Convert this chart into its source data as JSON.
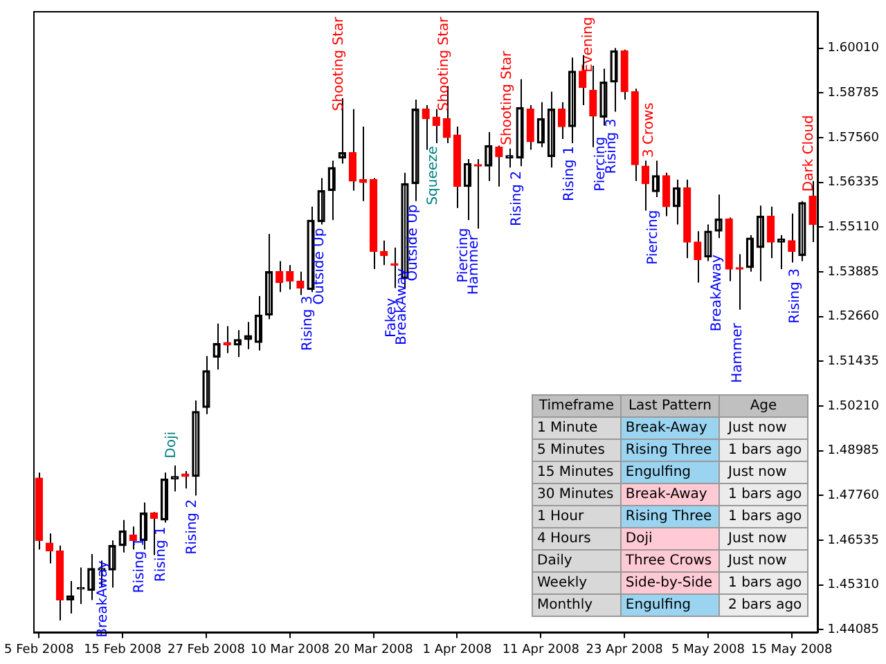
{
  "chart_data": [
    {
      "type": "candlestick",
      "categories": [
        "5 Feb 2008",
        null,
        null,
        null,
        null,
        null,
        null,
        null,
        "15 Feb 2008",
        null,
        null,
        null,
        null,
        null,
        null,
        null,
        "27 Feb 2008",
        null,
        null,
        null,
        null,
        null,
        null,
        null,
        "10 Mar 2008",
        null,
        null,
        null,
        null,
        null,
        null,
        null,
        "20 Mar 2008",
        null,
        null,
        null,
        null,
        null,
        null,
        null,
        "1 Apr 2008",
        null,
        null,
        null,
        null,
        null,
        null,
        null,
        "11 Apr 2008",
        null,
        null,
        null,
        null,
        null,
        null,
        null,
        "23 Apr 2008",
        null,
        null,
        null,
        null,
        null,
        null,
        null,
        "5 May 2008",
        null,
        null,
        null,
        null,
        null,
        null,
        null,
        "15 May 2008",
        null,
        null
      ],
      "ohlc": [
        [
          1.4824,
          1.4839,
          1.4628,
          1.4653
        ],
        [
          1.4646,
          1.4672,
          1.459,
          1.4624
        ],
        [
          1.4624,
          1.4639,
          1.4434,
          1.449
        ],
        [
          1.449,
          1.4542,
          1.4453,
          1.4501
        ],
        [
          1.452,
          1.4579,
          1.4479,
          1.4524
        ],
        [
          1.4516,
          1.4616,
          1.449,
          1.4576
        ],
        [
          1.4572,
          1.4598,
          1.4527,
          1.4576
        ],
        [
          1.4572,
          1.4653,
          1.4524,
          1.4639
        ],
        [
          1.4639,
          1.4709,
          1.462,
          1.4679
        ],
        [
          1.4668,
          1.4691,
          1.4628,
          1.4653
        ],
        [
          1.4653,
          1.4757,
          1.4628,
          1.4728
        ],
        [
          1.4728,
          1.4731,
          1.4613,
          1.4713
        ],
        [
          1.4709,
          1.4839,
          1.4702,
          1.4821
        ],
        [
          1.4821,
          1.4858,
          1.4787,
          1.4828
        ],
        [
          1.4835,
          1.4843,
          1.4795,
          1.4828
        ],
        [
          1.4828,
          1.5036,
          1.4776,
          1.5006
        ],
        [
          1.5017,
          1.5158,
          1.4999,
          1.5118
        ],
        [
          1.5155,
          1.5247,
          1.5121,
          1.5192
        ],
        [
          1.5195,
          1.524,
          1.5166,
          1.5188
        ],
        [
          1.5188,
          1.5229,
          1.5155,
          1.5203
        ],
        [
          1.5203,
          1.5251,
          1.5177,
          1.5214
        ],
        [
          1.5195,
          1.5322,
          1.5173,
          1.527
        ],
        [
          1.527,
          1.5492,
          1.5259,
          1.5389
        ],
        [
          1.5389,
          1.5418,
          1.5333,
          1.5359
        ],
        [
          1.5389,
          1.5407,
          1.534,
          1.5363
        ],
        [
          1.5363,
          1.5389,
          1.5325,
          1.5344
        ],
        [
          1.534,
          1.5567,
          1.5333,
          1.553
        ],
        [
          1.5526,
          1.5645,
          1.5518,
          1.5611
        ],
        [
          1.5611,
          1.5693,
          1.553,
          1.5674
        ],
        [
          1.57,
          1.5864,
          1.5685,
          1.5715
        ],
        [
          1.5715,
          1.5834,
          1.5611,
          1.5637
        ],
        [
          1.5641,
          1.5786,
          1.5582,
          1.5633
        ],
        [
          1.5641,
          1.5645,
          1.5396,
          1.5444
        ],
        [
          1.5444,
          1.5474,
          1.5407,
          1.5433
        ],
        [
          1.5411,
          1.5455,
          1.5344,
          1.5407
        ],
        [
          1.537,
          1.566,
          1.5344,
          1.563
        ],
        [
          1.563,
          1.586,
          1.5582,
          1.5834
        ],
        [
          1.5834,
          1.5845,
          1.5723,
          1.5808
        ],
        [
          1.5812,
          1.5834,
          1.5741,
          1.5789
        ],
        [
          1.5808,
          1.5897,
          1.5741,
          1.5756
        ],
        [
          1.5763,
          1.5786,
          1.5563,
          1.5622
        ],
        [
          1.5622,
          1.5697,
          1.553,
          1.5685
        ],
        [
          1.5682,
          1.5697,
          1.5507,
          1.5678
        ],
        [
          1.5678,
          1.5771,
          1.5637,
          1.5734
        ],
        [
          1.573,
          1.5734,
          1.5622,
          1.5704
        ],
        [
          1.57,
          1.5726,
          1.5674,
          1.5707
        ],
        [
          1.57,
          1.5916,
          1.5678,
          1.5838
        ],
        [
          1.5834,
          1.5845,
          1.5723,
          1.5745
        ],
        [
          1.5741,
          1.5853,
          1.573,
          1.5808
        ],
        [
          1.5704,
          1.5882,
          1.5674,
          1.5834
        ],
        [
          1.5834,
          1.5853,
          1.5752,
          1.5786
        ],
        [
          1.5786,
          1.5975,
          1.5741,
          1.5938
        ],
        [
          1.5938,
          1.5982,
          1.5845,
          1.5893
        ],
        [
          1.5886,
          1.5953,
          1.573,
          1.5815
        ],
        [
          1.5812,
          1.5945,
          1.5789,
          1.5908
        ],
        [
          1.5908,
          1.6001,
          1.5827,
          1.5994
        ],
        [
          1.5994,
          1.5997,
          1.586,
          1.5882
        ],
        [
          1.5882,
          1.589,
          1.5637,
          1.5682
        ],
        [
          1.5678,
          1.5693,
          1.5556,
          1.563
        ],
        [
          1.5608,
          1.5693,
          1.5593,
          1.5652
        ],
        [
          1.5652,
          1.566,
          1.5541,
          1.5567
        ],
        [
          1.5567,
          1.5641,
          1.5518,
          1.5619
        ],
        [
          1.5619,
          1.5641,
          1.5426,
          1.547
        ],
        [
          1.547,
          1.55,
          1.5359,
          1.5422
        ],
        [
          1.5429,
          1.5518,
          1.5418,
          1.55
        ],
        [
          1.55,
          1.56,
          1.5481,
          1.5533
        ],
        [
          1.5533,
          1.5537,
          1.5363,
          1.5396
        ],
        [
          1.54,
          1.5437,
          1.5285,
          1.5396
        ],
        [
          1.54,
          1.5489,
          1.5389,
          1.5481
        ],
        [
          1.5455,
          1.557,
          1.5363,
          1.5541
        ],
        [
          1.5541,
          1.5567,
          1.5426,
          1.547
        ],
        [
          1.547,
          1.5489,
          1.5396,
          1.5478
        ],
        [
          1.5474,
          1.5548,
          1.5414,
          1.5444
        ],
        [
          1.5433,
          1.5582,
          1.5418,
          1.5578
        ],
        [
          1.5596,
          1.5637,
          1.547,
          1.5518
        ]
      ],
      "colors": [
        "#ff0000",
        "#ff0000",
        "#ff0000",
        "#000000",
        "#000000",
        "#000000",
        "#000000",
        "#000000",
        "#000000",
        "#ff0000",
        "#000000",
        "#ff0000",
        "#000000",
        "#000000",
        "#ff0000",
        "#000000",
        "#000000",
        "#000000",
        "#ff0000",
        "#000000",
        "#000000",
        "#000000",
        "#000000",
        "#ff0000",
        "#ff0000",
        "#ff0000",
        "#000000",
        "#000000",
        "#000000",
        "#000000",
        "#ff0000",
        "#ff0000",
        "#ff0000",
        "#ff0000",
        "#ff0000",
        "#000000",
        "#000000",
        "#ff0000",
        "#ff0000",
        "#ff0000",
        "#ff0000",
        "#000000",
        "#ff0000",
        "#000000",
        "#ff0000",
        "#000000",
        "#000000",
        "#ff0000",
        "#000000",
        "#000000",
        "#ff0000",
        "#000000",
        "#ff0000",
        "#ff0000",
        "#000000",
        "#000000",
        "#ff0000",
        "#ff0000",
        "#ff0000",
        "#000000",
        "#ff0000",
        "#000000",
        "#ff0000",
        "#ff0000",
        "#000000",
        "#000000",
        "#ff0000",
        "#ff0000",
        "#000000",
        "#000000",
        "#ff0000",
        "#000000",
        "#ff0000",
        "#000000",
        "#ff0000"
      ],
      "ylim": [
        1.4401,
        1.6101
      ],
      "yticks": [
        1.44085,
        {
          "value": 1.4531,
          "label": "1.45310"
        },
        1.46535,
        {
          "value": 1.4776,
          "label": "1.47760"
        },
        1.48985,
        {
          "value": 1.5021,
          "label": "1.50210"
        },
        1.51435,
        {
          "value": 1.5266,
          "label": "1.52660"
        },
        1.53885,
        {
          "value": 1.5511,
          "label": "1.55110"
        },
        1.56335,
        {
          "value": 1.5756,
          "label": "1.57560"
        },
        1.58785,
        {
          "value": 1.6001,
          "label": "1.60010"
        }
      ],
      "annotations": [
        "BreakAway",
        "Rising 1",
        "Rising 1",
        "Doji",
        "Rising 2",
        "Rising 3",
        "Outside Up",
        "Shooting Star",
        "Fakey",
        "BreakAway",
        "Outside Up",
        "Squeeze",
        "Shooting Star",
        "Piercing",
        "Hammer",
        "Shooting Star",
        "Rising 2",
        "Rising 1",
        "Evening",
        "Piercing",
        "Rising 3",
        "3 Crows",
        "Piercing",
        "BreakAway",
        "Hammer",
        "Rising 3",
        "Dark Cloud"
      ]
    },
    {
      "type": "other",
      "annotations": [
        "Timeframe",
        "Last Pattern",
        "Age",
        "1 Minute",
        "Break-Away",
        "Just now",
        "5 Minutes",
        "Rising Three",
        "1 bars ago",
        "15 Minutes",
        "Engulfing",
        "Just now",
        "30 Minutes",
        "Break-Away",
        "1 bars ago",
        "1 Hour",
        "Rising Three",
        "1 bars ago",
        "4 Hours",
        "Doji",
        "Just now",
        "Daily",
        "Three Crows",
        "Just now",
        "Weekly",
        "Side-by-Side",
        "1 bars ago",
        "Monthly",
        "Engulfing",
        "2 bars ago"
      ],
      "colors": [
        "#9ad4f0",
        "#9ad4f0",
        "#9ad4f0",
        "#ffcad4",
        "#9ad4f0",
        "#ffcad4",
        "#ffcad4",
        "#ffcad4",
        "#9ad4f0"
      ]
    }
  ]
}
